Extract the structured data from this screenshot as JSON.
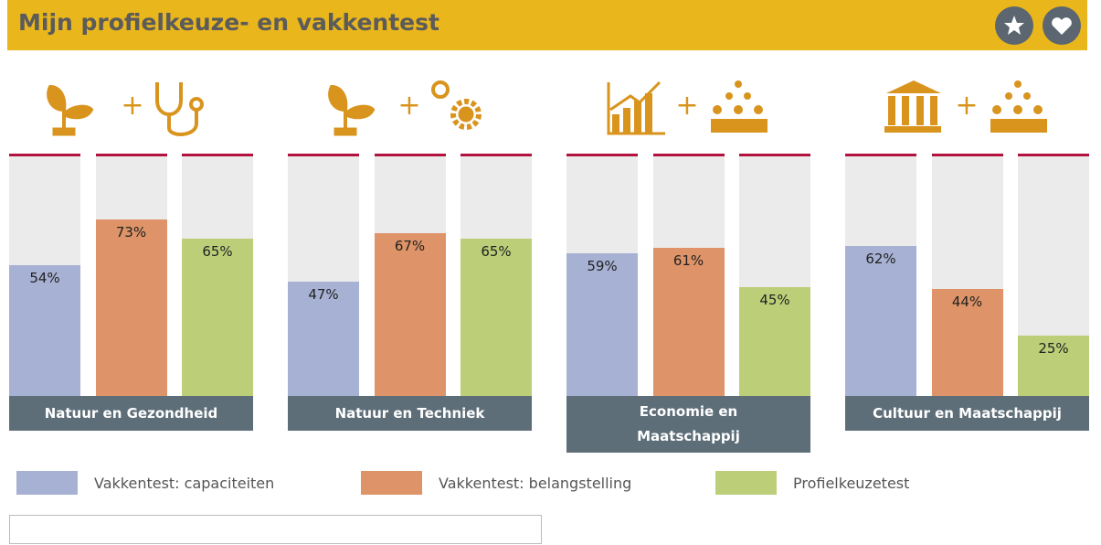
{
  "chart_data": {
    "type": "bar",
    "title": "Mijn profielkeuze- en vakkentest",
    "categories": [
      "Natuur en Gezondheid",
      "Natuur en Techniek",
      "Economie en Maatschappij",
      "Cultuur en Maatschappij"
    ],
    "ylim": [
      0,
      100
    ],
    "series": [
      {
        "name": "Vakkentest: capaciteiten",
        "color": "#a7b1d3",
        "values": [
          54,
          47,
          59,
          62
        ],
        "value_labels": [
          "54%",
          "47%",
          "59%",
          "62%"
        ]
      },
      {
        "name": "Vakkentest: belangstelling",
        "color": "#de9468",
        "values": [
          73,
          67,
          61,
          44
        ],
        "value_labels": [
          "73%",
          "67%",
          "61%",
          "44%"
        ]
      },
      {
        "name": "Profielkeuzetest",
        "color": "#bccf78",
        "values": [
          65,
          65,
          45,
          25
        ],
        "value_labels": [
          "65%",
          "65%",
          "45%",
          "25%"
        ]
      }
    ]
  }
}
